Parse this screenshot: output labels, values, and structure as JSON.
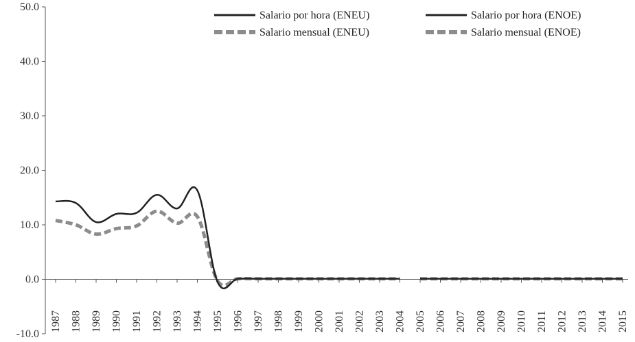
{
  "chart_data": {
    "type": "line",
    "title": "",
    "xlabel": "",
    "ylabel": "",
    "ylim": [
      -10,
      50
    ],
    "yticks": [
      "50.0",
      "40.0",
      "30.0",
      "20.0",
      "10.0",
      "0.0",
      "-10.0"
    ],
    "categories": [
      "1987",
      "1988",
      "1989",
      "1990",
      "1991",
      "1992",
      "1993",
      "1994",
      "1995",
      "1996",
      "1997",
      "1998",
      "1999",
      "2000",
      "2001",
      "2002",
      "2003",
      "2004",
      "2005",
      "2006",
      "2007",
      "2008",
      "2009",
      "2010",
      "2011",
      "2012",
      "2013",
      "2014",
      "2015"
    ],
    "legend_position": "top-right",
    "grid": false,
    "series": [
      {
        "name": "Salario por hora (ENEU)",
        "style": "solid",
        "color": "#222222",
        "values": [
          14.3,
          14.0,
          10.5,
          12.0,
          12.2,
          15.5,
          13.0,
          16.3,
          -0.5,
          0.1,
          0.1,
          0.1,
          0.1,
          0.1,
          0.1,
          0.1,
          0.1,
          0.1,
          null,
          null,
          null,
          null,
          null,
          null,
          null,
          null,
          null,
          null,
          null
        ]
      },
      {
        "name": "Salario por hora (ENOE)",
        "style": "solid",
        "color": "#222222",
        "values": [
          null,
          null,
          null,
          null,
          null,
          null,
          null,
          null,
          null,
          null,
          null,
          null,
          null,
          null,
          null,
          null,
          null,
          null,
          0.1,
          0.1,
          0.1,
          0.1,
          0.1,
          0.1,
          0.1,
          0.1,
          0.1,
          0.1,
          0.1
        ]
      },
      {
        "name": "Salario mensual (ENEU)",
        "style": "dashed",
        "color": "#8c8c8c",
        "values": [
          10.8,
          10.0,
          8.3,
          9.3,
          9.8,
          12.5,
          10.3,
          11.5,
          -0.3,
          0.1,
          0.1,
          0.1,
          0.1,
          0.1,
          0.1,
          0.1,
          0.1,
          0.1,
          null,
          null,
          null,
          null,
          null,
          null,
          null,
          null,
          null,
          null,
          null
        ]
      },
      {
        "name": "Salario mensual (ENOE)",
        "style": "dashed",
        "color": "#8c8c8c",
        "values": [
          null,
          null,
          null,
          null,
          null,
          null,
          null,
          null,
          null,
          null,
          null,
          null,
          null,
          null,
          null,
          null,
          null,
          null,
          0.1,
          0.1,
          0.1,
          0.1,
          0.1,
          0.1,
          0.1,
          0.1,
          0.1,
          0.1,
          0.1
        ]
      }
    ]
  }
}
